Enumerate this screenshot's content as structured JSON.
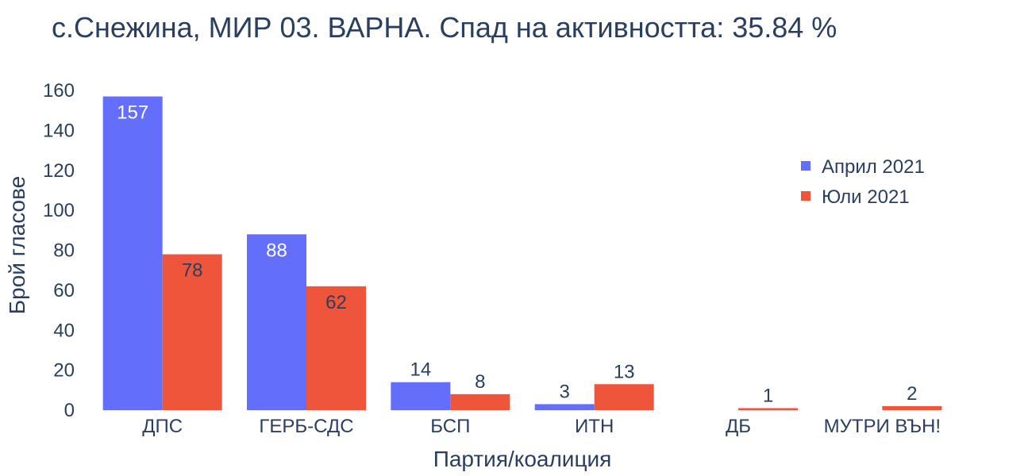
{
  "chart_data": {
    "type": "bar",
    "title": "с.Снежина, МИР 03. ВАРНА. Спад на активността: 35.84 %",
    "xlabel": "Партия/коалиция",
    "ylabel": "Брой гласове",
    "categories": [
      "ДПС",
      "ГЕРБ-СДС",
      "БСП",
      "ИТН",
      "ДБ",
      "МУТРИ ВЪН!"
    ],
    "series": [
      {
        "name": "Април 2021",
        "color": "#636efa",
        "values": [
          157,
          88,
          14,
          3,
          0,
          0
        ],
        "labels": [
          "157",
          "88",
          "14",
          "3",
          "",
          ""
        ]
      },
      {
        "name": "Юли 2021",
        "color": "#ef553b",
        "values": [
          78,
          62,
          8,
          13,
          1,
          2
        ],
        "labels": [
          "78",
          "62",
          "8",
          "13",
          "1",
          "2"
        ]
      }
    ],
    "ylim": [
      0,
      160
    ],
    "yticks": [
      0,
      20,
      40,
      60,
      80,
      100,
      120,
      140,
      160
    ],
    "legend_position": "top-right",
    "grid": false
  }
}
